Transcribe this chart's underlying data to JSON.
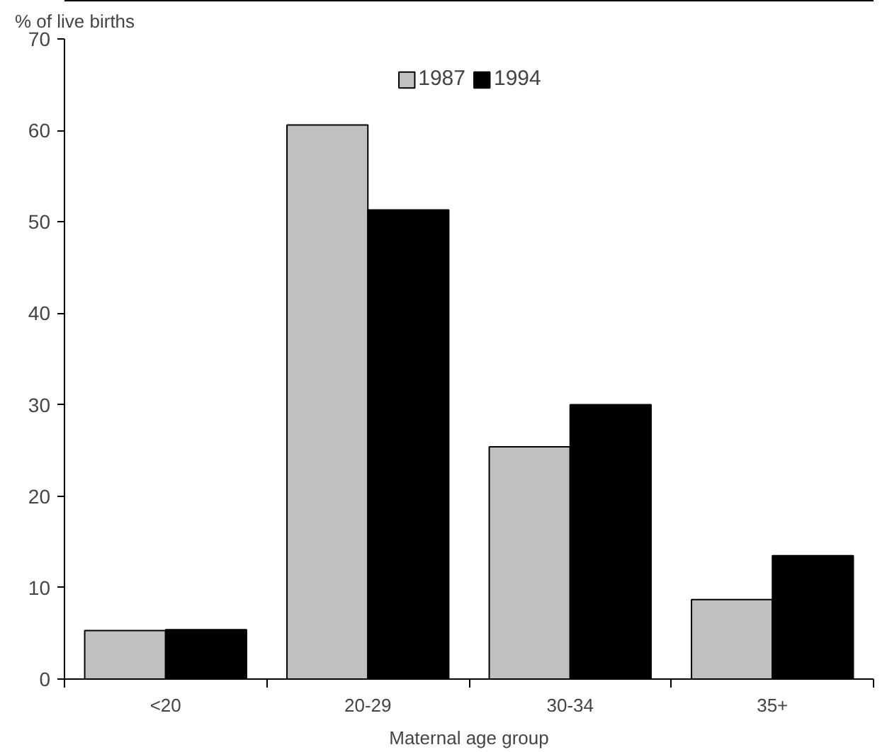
{
  "chart_data": {
    "type": "bar",
    "xlabel": "Maternal age group",
    "ylabel": "% of live births",
    "categories": [
      "<20",
      "20-29",
      "30-34",
      "35+"
    ],
    "series": [
      {
        "name": "1987",
        "color": "#c0c0c0",
        "values": [
          5.3,
          60.6,
          25.4,
          8.7
        ]
      },
      {
        "name": "1994",
        "color": "#000000",
        "values": [
          5.4,
          51.3,
          30.0,
          13.5
        ]
      }
    ],
    "ylim": [
      0,
      70
    ],
    "yticks": [
      0,
      10,
      20,
      30,
      40,
      50,
      60,
      70
    ],
    "grid": false,
    "legend": "top"
  }
}
